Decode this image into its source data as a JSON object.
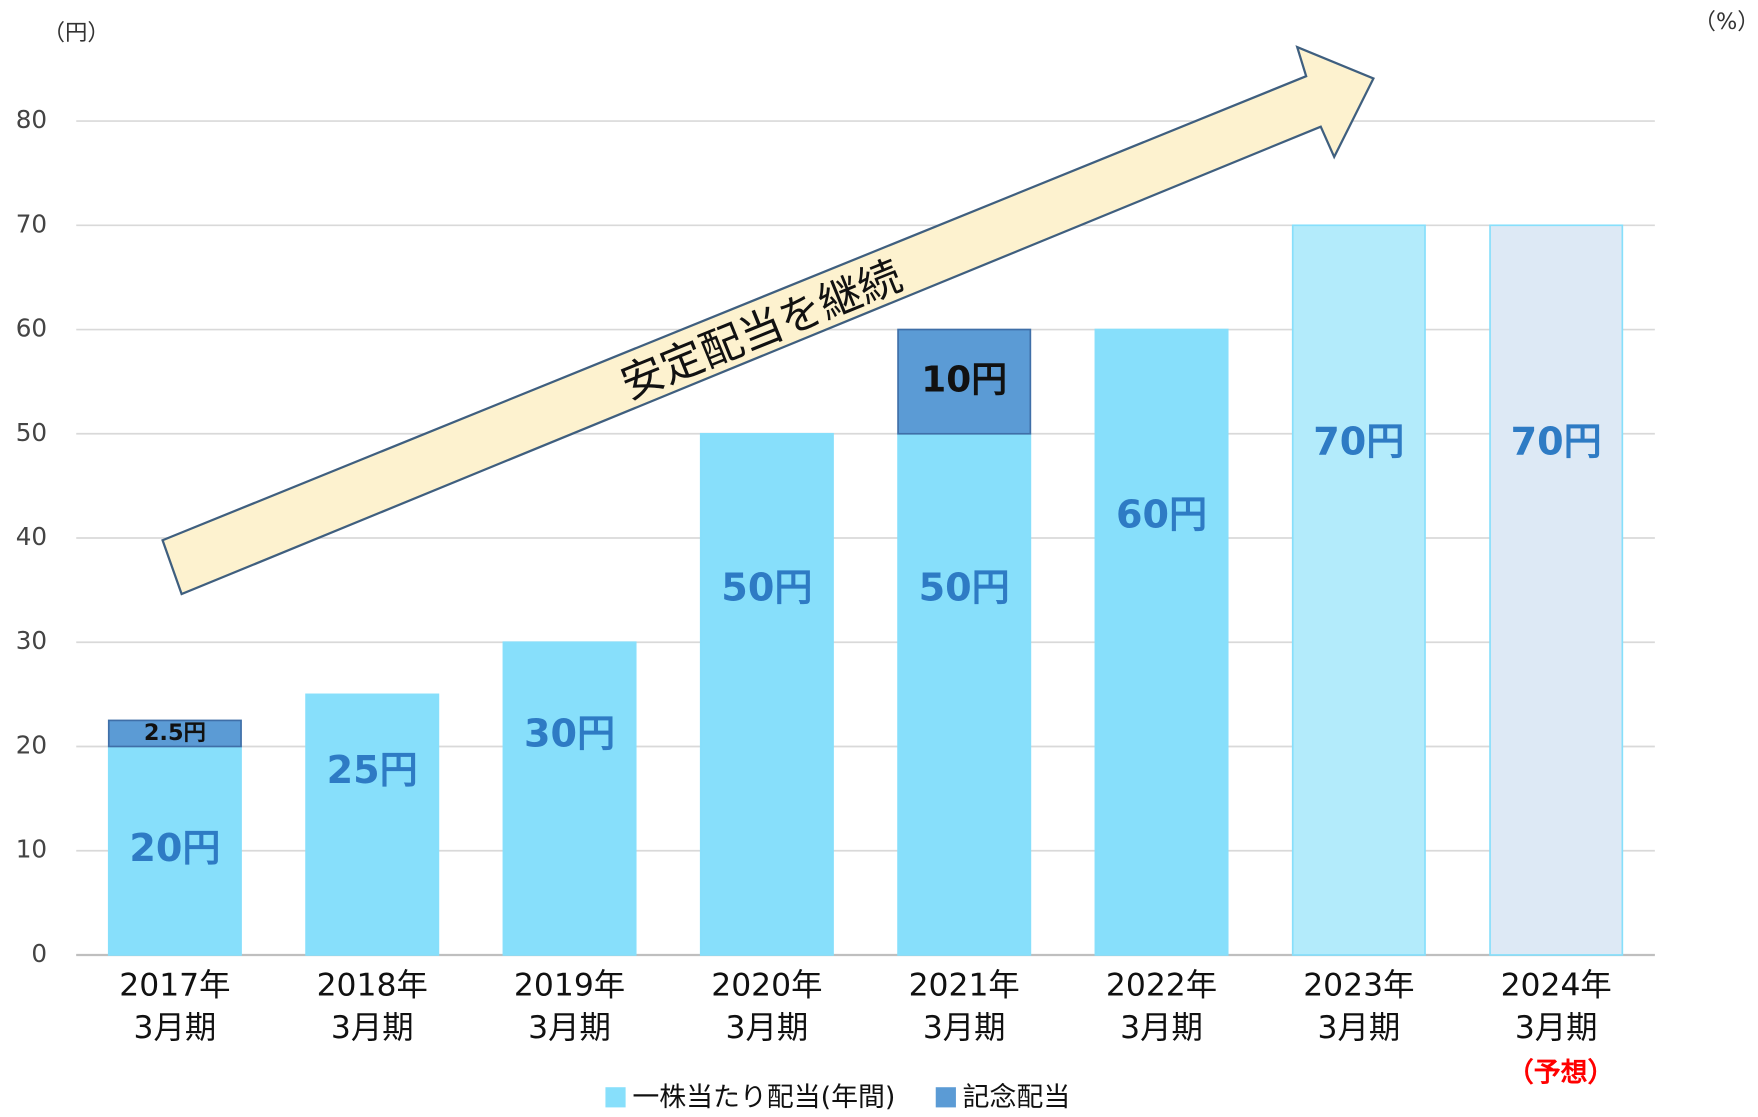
{
  "chart_data": {
    "type": "stacked_bar",
    "y_unit": "（円）",
    "y2_unit": "（%）",
    "arrow_text": "安定配当を継続",
    "forecast_note": "（予想）",
    "categories": [
      "2017年\n3月期",
      "2018年\n3月期",
      "2019年\n3月期",
      "2020年\n3月期",
      "2021年\n3月期",
      "2022年\n3月期",
      "2023年\n3月期",
      "2024年\n3月期"
    ],
    "series": [
      {
        "name": "一株当たり配当(年間)",
        "color": "#87dffb",
        "colors": [
          "#87dffb",
          "#87dffb",
          "#87dffb",
          "#87dffb",
          "#87dffb",
          "#87dffb",
          "#b3ebfb",
          "#dde9f5"
        ],
        "values": [
          20,
          25,
          30,
          50,
          50,
          60,
          70,
          70
        ],
        "value_labels": [
          "20円",
          "25円",
          "30円",
          "50円",
          "50円",
          "60円",
          "70円",
          "70円"
        ]
      },
      {
        "name": "記念配当",
        "color": "#5b9bd5",
        "values": [
          2.5,
          null,
          null,
          null,
          10,
          null,
          null,
          null
        ],
        "value_labels": [
          "2.5円",
          null,
          null,
          null,
          "10円",
          null,
          null,
          null
        ]
      }
    ],
    "ylim": [
      0,
      80
    ],
    "yticks": [
      0,
      10,
      20,
      30,
      40,
      50,
      60,
      70,
      80
    ],
    "grid": true,
    "legend": "bottom"
  }
}
